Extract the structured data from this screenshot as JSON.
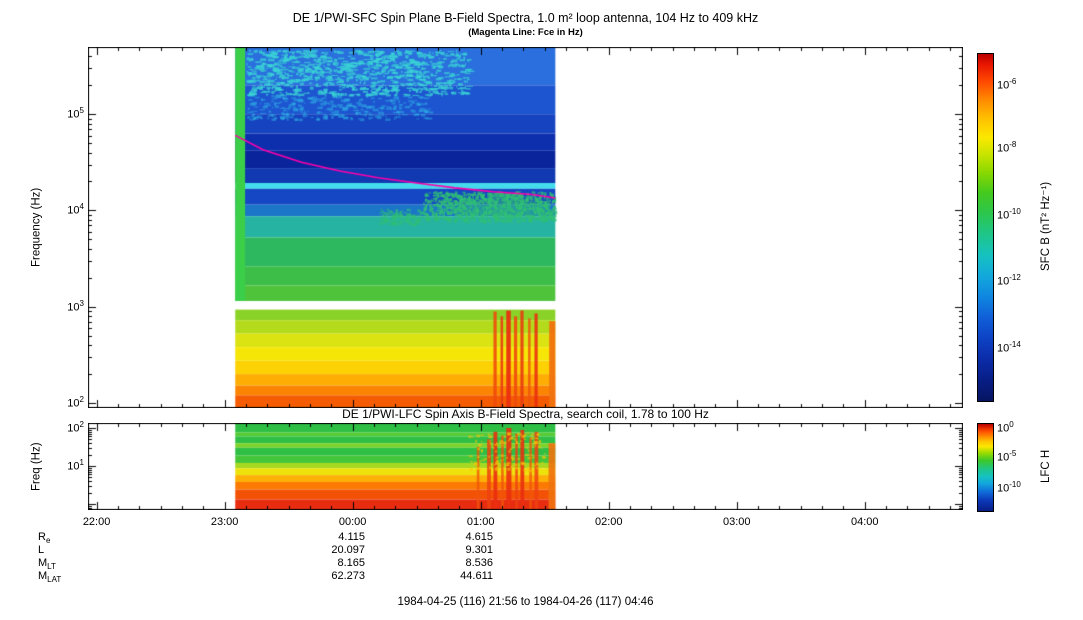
{
  "page": {
    "caption": "1984-04-25 (116) 21:56 to 1984-04-26 (117) 04:46"
  },
  "time_axis": {
    "range_hours": [
      21.933,
      28.767
    ],
    "data_range_hours": [
      23.083,
      25.583
    ],
    "ticks": [
      {
        "hour": 22,
        "label": "22:00"
      },
      {
        "hour": 23,
        "label": "23:00"
      },
      {
        "hour": 24,
        "label": "00:00"
      },
      {
        "hour": 25,
        "label": "01:00"
      },
      {
        "hour": 26,
        "label": "02:00"
      },
      {
        "hour": 27,
        "label": "03:00"
      },
      {
        "hour": 28,
        "label": "04:00"
      }
    ]
  },
  "chart_data": [
    {
      "type": "heatmap",
      "id": "sfc",
      "title": "DE 1/PWI-SFC  Spin Plane B-Field Spectra, 1.0 m² loop antenna, 104 Hz to 409 kHz",
      "subtitle": "(Magenta Line: Fce in Hz)",
      "ylabel": "Frequency (Hz)",
      "yscale": "log",
      "ylim_hz": [
        100,
        409000
      ],
      "xlim_hours": [
        21.933,
        28.767
      ],
      "logf_top": 5.698,
      "logf_bottom": 1.948,
      "seed": 7,
      "y_ticks": [
        {
          "exp": 2,
          "logf": 2
        },
        {
          "exp": 3,
          "logf": 3
        },
        {
          "exp": 4,
          "logf": 4
        },
        {
          "exp": 5,
          "logf": 5
        }
      ],
      "colorbar": {
        "label": "SFC B (nT² Hz⁻¹)",
        "ticks": [
          {
            "exp": -6,
            "frac": 0.092
          },
          {
            "exp": -8,
            "frac": 0.274
          },
          {
            "exp": -10,
            "frac": 0.467
          },
          {
            "exp": -12,
            "frac": 0.657
          },
          {
            "exp": -14,
            "frac": 0.85
          }
        ]
      },
      "bands": [
        {
          "f0": 5.3,
          "f1": 5.698,
          "color": "#2a6fdd"
        },
        {
          "f0": 5.0,
          "f1": 5.3,
          "color": "#1d55d0"
        },
        {
          "f0": 4.8,
          "f1": 5.0,
          "color": "#1643c0"
        },
        {
          "f0": 4.62,
          "f1": 4.8,
          "color": "#0d2fae"
        },
        {
          "f0": 4.44,
          "f1": 4.62,
          "color": "#0a249c"
        },
        {
          "f0": 4.285,
          "f1": 4.44,
          "color": "#1039b2"
        },
        {
          "f0": 4.225,
          "f1": 4.285,
          "color": "#43dcec"
        },
        {
          "f0": 4.06,
          "f1": 4.225,
          "color": "#1546c4"
        },
        {
          "f0": 3.94,
          "f1": 4.06,
          "color": "#1b76c8"
        },
        {
          "f0": 3.72,
          "f1": 3.94,
          "color": "#27b3a2"
        },
        {
          "f0": 3.42,
          "f1": 3.72,
          "color": "#2db860"
        },
        {
          "f0": 3.22,
          "f1": 3.42,
          "color": "#3cbe49"
        },
        {
          "f0": 3.06,
          "f1": 3.22,
          "color": "#4fc43b"
        },
        {
          "f0": 2.86,
          "f1": 2.97,
          "color": "#8bd228"
        },
        {
          "f0": 2.72,
          "f1": 2.86,
          "color": "#b3db1c"
        },
        {
          "f0": 2.58,
          "f1": 2.72,
          "color": "#dce312"
        },
        {
          "f0": 2.44,
          "f1": 2.58,
          "color": "#f6e608"
        },
        {
          "f0": 2.3,
          "f1": 2.44,
          "color": "#fdd205"
        },
        {
          "f0": 2.18,
          "f1": 2.3,
          "color": "#fdad04"
        },
        {
          "f0": 2.08,
          "f1": 2.18,
          "color": "#fb8403"
        },
        {
          "f0": 1.948,
          "f1": 2.08,
          "color": "#f55c02"
        },
        {
          "t0": 23.083,
          "t1": 23.16,
          "f0": 3.06,
          "f1": 5.698,
          "color": "#3bcf49"
        }
      ],
      "streaks": [
        {
          "t0": 24.85,
          "t1": 25.05,
          "f0": 3.94,
          "f1": 4.12,
          "color": "#2fbf76",
          "alpha": 0.45
        },
        {
          "t0": 25.05,
          "t1": 25.3,
          "f0": 3.94,
          "f1": 4.18,
          "color": "#2fbf76",
          "alpha": 0.55
        },
        {
          "t0": 25.3,
          "t1": 25.5,
          "f0": 3.94,
          "f1": 4.1,
          "color": "#2fbf76",
          "alpha": 0.45
        },
        {
          "t0": 25.1,
          "t1": 25.125,
          "f0": 1.948,
          "f1": 2.95,
          "color": "#ef4a0c",
          "alpha": 0.9
        },
        {
          "t0": 25.155,
          "t1": 25.175,
          "f0": 1.948,
          "f1": 2.9,
          "color": "#e83b10",
          "alpha": 0.9
        },
        {
          "t0": 25.2,
          "t1": 25.235,
          "f0": 1.948,
          "f1": 2.96,
          "color": "#ea2f10",
          "alpha": 0.95
        },
        {
          "t0": 25.26,
          "t1": 25.285,
          "f0": 1.948,
          "f1": 2.9,
          "color": "#ef4a0c",
          "alpha": 0.9
        },
        {
          "t0": 25.31,
          "t1": 25.335,
          "f0": 1.948,
          "f1": 2.96,
          "color": "#e83b10",
          "alpha": 0.9
        },
        {
          "t0": 25.37,
          "t1": 25.39,
          "f0": 1.948,
          "f1": 2.88,
          "color": "#ef560c",
          "alpha": 0.85
        },
        {
          "t0": 25.42,
          "t1": 25.445,
          "f0": 1.948,
          "f1": 2.93,
          "color": "#ea2f10",
          "alpha": 0.9
        },
        {
          "t0": 25.535,
          "t1": 25.583,
          "f0": 1.948,
          "f1": 2.85,
          "color": "#f0720e",
          "alpha": 0.95
        }
      ],
      "speckles": [
        {
          "t0": 23.17,
          "t1": 24.9,
          "f0": 5.2,
          "f1": 5.67,
          "color": "#3ad6d6",
          "count": 900,
          "w": 6,
          "h": 2,
          "alpha": 0.7
        },
        {
          "t0": 23.17,
          "t1": 24.6,
          "f0": 4.95,
          "f1": 5.2,
          "color": "#2fb4e8",
          "count": 300,
          "w": 5,
          "h": 2,
          "alpha": 0.5
        },
        {
          "t0": 24.55,
          "t1": 25.58,
          "f0": 3.9,
          "f1": 4.2,
          "color": "#2fbf76",
          "count": 700,
          "w": 3,
          "h": 3,
          "alpha": 0.8
        },
        {
          "t0": 24.2,
          "t1": 24.55,
          "f0": 3.86,
          "f1": 4.02,
          "color": "#2fbf76",
          "count": 150,
          "w": 3,
          "h": 2,
          "alpha": 0.6
        }
      ],
      "line": {
        "name": "Fce",
        "color": "#ff00aa",
        "points": [
          [
            23.083,
            4.78
          ],
          [
            23.3,
            4.63
          ],
          [
            23.6,
            4.5
          ],
          [
            23.9,
            4.41
          ],
          [
            24.2,
            4.34
          ],
          [
            24.5,
            4.285
          ],
          [
            24.8,
            4.235
          ],
          [
            25.1,
            4.195
          ],
          [
            25.4,
            4.165
          ],
          [
            25.583,
            4.13
          ]
        ]
      }
    },
    {
      "type": "heatmap",
      "id": "lfc",
      "title": "DE 1/PWI-LFC  Spin Axis B-Field Spectra, search coil, 1.78 to 100 Hz",
      "ylabel": "Freq (Hz)",
      "yscale": "log",
      "ylim_hz": [
        1.78,
        100
      ],
      "xlim_hours": [
        21.933,
        28.767
      ],
      "logf_top": 2.132,
      "logf_bottom": -0.158,
      "seed": 13,
      "y_ticks": [
        {
          "exp": 1,
          "logf": 1
        },
        {
          "exp": 2,
          "logf": 2
        }
      ],
      "colorbar": {
        "label": "LFC H",
        "ticks": [
          {
            "exp": 0,
            "frac": 0.057
          },
          {
            "exp": -5,
            "frac": 0.39
          },
          {
            "exp": -10,
            "frac": 0.747
          }
        ]
      },
      "bands": [
        {
          "f0": 1.88,
          "f1": 2.132,
          "color": "#2fbf45"
        },
        {
          "f0": 1.78,
          "f1": 1.88,
          "color": "#55cb34"
        },
        {
          "f0": 1.6,
          "f1": 1.78,
          "color": "#2fbf45"
        },
        {
          "f0": 1.48,
          "f1": 1.6,
          "color": "#7cd32b"
        },
        {
          "f0": 1.28,
          "f1": 1.48,
          "color": "#2fbf45"
        },
        {
          "f0": 1.08,
          "f1": 1.28,
          "color": "#45c63a"
        },
        {
          "f0": 0.94,
          "f1": 1.08,
          "color": "#a6d922"
        },
        {
          "f0": 0.76,
          "f1": 0.94,
          "color": "#eee20c"
        },
        {
          "f0": 0.58,
          "f1": 0.76,
          "color": "#fdb005"
        },
        {
          "f0": 0.38,
          "f1": 0.58,
          "color": "#fb7a03"
        },
        {
          "f0": 0.12,
          "f1": 0.38,
          "color": "#f35206"
        },
        {
          "f0": -0.158,
          "f1": 0.12,
          "color": "#e82c10"
        }
      ],
      "streaks": [
        {
          "t0": 24.97,
          "t1": 24.99,
          "f0": -0.158,
          "f1": 1.5,
          "color": "#f0560a",
          "alpha": 0.8
        },
        {
          "t0": 25.05,
          "t1": 25.08,
          "f0": -0.158,
          "f1": 1.7,
          "color": "#ee4210",
          "alpha": 0.85
        },
        {
          "t0": 25.1,
          "t1": 25.13,
          "f0": -0.158,
          "f1": 1.9,
          "color": "#ea2f10",
          "alpha": 0.9
        },
        {
          "t0": 25.16,
          "t1": 25.18,
          "f0": -0.158,
          "f1": 1.8,
          "color": "#f0560a",
          "alpha": 0.85
        },
        {
          "t0": 25.2,
          "t1": 25.24,
          "f0": -0.158,
          "f1": 2.0,
          "color": "#ea2f10",
          "alpha": 0.9
        },
        {
          "t0": 25.27,
          "t1": 25.29,
          "f0": -0.158,
          "f1": 1.85,
          "color": "#ee4210",
          "alpha": 0.85
        },
        {
          "t0": 25.31,
          "t1": 25.34,
          "f0": -0.158,
          "f1": 1.95,
          "color": "#ea2f10",
          "alpha": 0.9
        },
        {
          "t0": 25.38,
          "t1": 25.4,
          "f0": -0.158,
          "f1": 1.75,
          "color": "#f0560a",
          "alpha": 0.8
        },
        {
          "t0": 25.42,
          "t1": 25.45,
          "f0": -0.158,
          "f1": 1.9,
          "color": "#ee4210",
          "alpha": 0.85
        },
        {
          "t0": 25.53,
          "t1": 25.583,
          "f0": -0.158,
          "f1": 1.6,
          "color": "#f0720e",
          "alpha": 0.9
        }
      ],
      "speckles": [
        {
          "t0": 24.9,
          "t1": 25.5,
          "f0": 0.9,
          "f1": 1.9,
          "color": "#f6c60a",
          "count": 150,
          "w": 3,
          "h": 2,
          "alpha": 0.6
        }
      ]
    }
  ],
  "ephemeris": {
    "rows": [
      {
        "label": "R",
        "sub": "e",
        "values": [
          "4.115",
          "4.615"
        ]
      },
      {
        "label": "L",
        "sub": "",
        "values": [
          "20.097",
          "9.301"
        ]
      },
      {
        "label": "M",
        "sub": "LT",
        "values": [
          "8.165",
          "8.536"
        ]
      },
      {
        "label": "M",
        "sub": "LAT",
        "values": [
          "62.273",
          "44.611"
        ]
      }
    ],
    "column_hours": [
      24,
      25
    ]
  }
}
